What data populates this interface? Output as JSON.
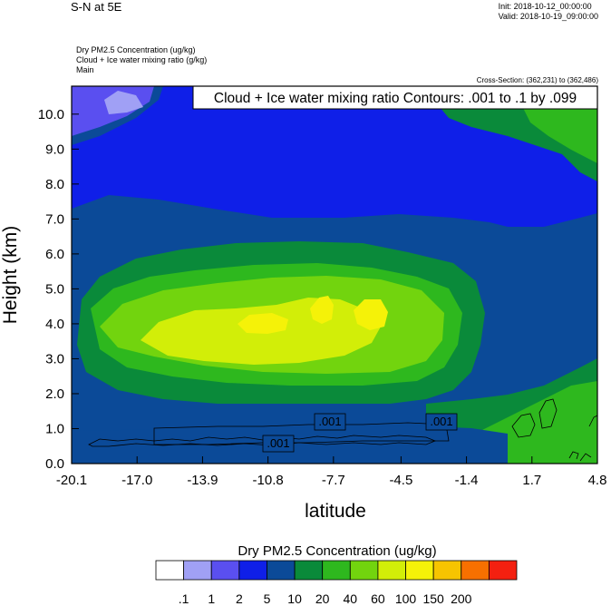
{
  "header": {
    "title": "S-N at 5E",
    "init": "Init: 2018-10-12_00:00:00",
    "valid": "Valid: 2018-10-19_09:00:00"
  },
  "fields": {
    "line1": "Dry PM2.5 Concentration   (ug/kg)",
    "line2": "Cloud + Ice water mixing ratio   (g/kg)",
    "line3": "Main"
  },
  "cross_section": "Cross-Section: (362,231) to (362,486)",
  "contour_info": "Cloud + Ice water mixing ratio Contours: .001 to .1 by .099",
  "contour_labels": [
    ".001",
    ".001",
    ".001"
  ],
  "colorbar": {
    "title": "Dry PM2.5 Concentration  (ug/kg)",
    "labels": [
      ".1",
      "1",
      "2",
      "5",
      "10",
      "20",
      "40",
      "60",
      "100",
      "150",
      "200"
    ],
    "colors": [
      "#ffffff",
      "#a0a0f5",
      "#5a4ff0",
      "#0f1fe8",
      "#0b4a98",
      "#0a8a3a",
      "#2eb81e",
      "#72d40e",
      "#d2ee08",
      "#f5f208",
      "#f7c400",
      "#f77000",
      "#f42010"
    ]
  },
  "chart_data": {
    "type": "heatmap",
    "title": "S-N at 5E",
    "xlabel": "latitude",
    "ylabel": "Height (km)",
    "x_ticks": [
      "-20.1",
      "-17.0",
      "-13.9",
      "-10.8",
      "-7.7",
      "-4.5",
      "-1.4",
      "1.7",
      "4.8"
    ],
    "y_ticks": [
      "0.0",
      "1.0",
      "2.0",
      "3.0",
      "4.0",
      "5.0",
      "6.0",
      "7.0",
      "8.0",
      "9.0",
      "10.0"
    ],
    "xlim": [
      -20.1,
      4.8
    ],
    "ylim": [
      0,
      10.8
    ],
    "levels": [
      0.1,
      1,
      2,
      5,
      10,
      20,
      40,
      60,
      100,
      150,
      200
    ],
    "regions": [
      {
        "level": "5-10",
        "note": "dark blue background aloft"
      },
      {
        "level": "1-2",
        "note": "upper-left light blue patch near 10 km, -20 to -14"
      },
      {
        "level": "10-20",
        "note": "plume envelope 2-7 km"
      },
      {
        "level": "60-100",
        "note": "plume core 2.5-5 km, -18 to -5"
      },
      {
        "level": "100-150",
        "note": "maxima near -10.8 and -5.5 at 4.2 km"
      },
      {
        "level": "20-40",
        "note": "surface layer east of -4 km, 0-2 km"
      }
    ]
  }
}
